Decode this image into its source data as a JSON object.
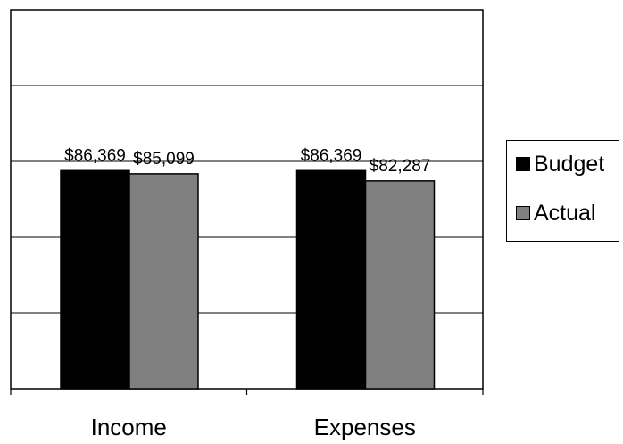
{
  "chart_data": {
    "type": "bar",
    "categories": [
      "Income",
      "Expenses"
    ],
    "series": [
      {
        "name": "Budget",
        "values": [
          86369,
          86369
        ],
        "labels": [
          "$86,369",
          "$86,369"
        ],
        "color": "#000000"
      },
      {
        "name": "Actual",
        "values": [
          85099,
          82287
        ],
        "labels": [
          "$85,099",
          "$82,287"
        ],
        "color": "#808080"
      }
    ],
    "ylim": [
      0,
      150000
    ],
    "y_gridlines": [
      30000,
      60000,
      90000,
      120000
    ],
    "grid": true,
    "legend": "right",
    "title": "",
    "xlabel": "",
    "ylabel": ""
  }
}
